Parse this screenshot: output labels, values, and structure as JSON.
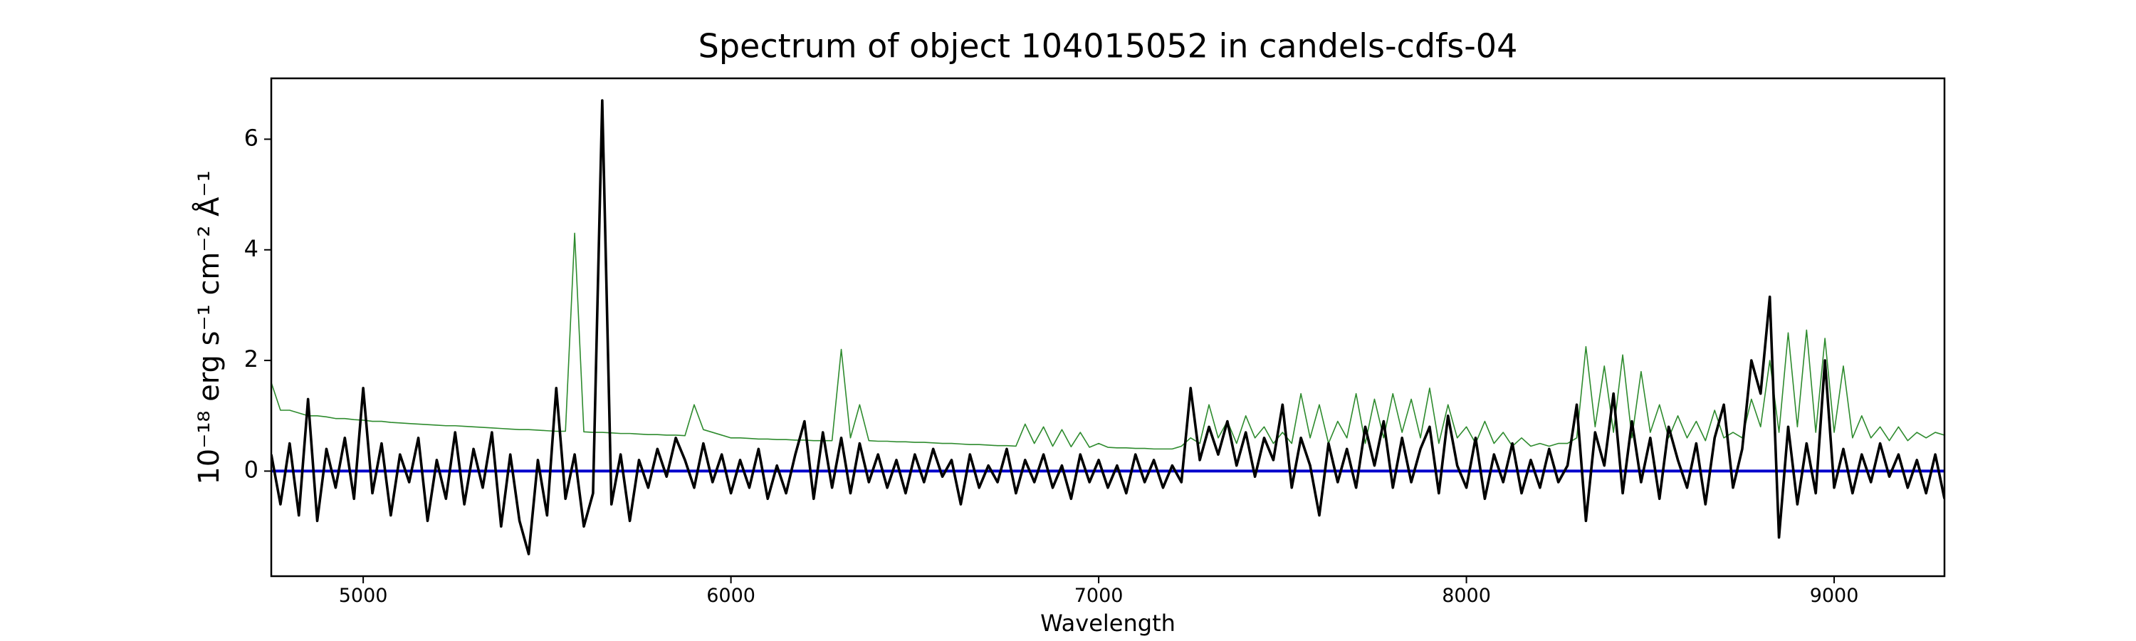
{
  "chart_data": {
    "type": "line",
    "title": "Spectrum of object 104015052 in candels-cdfs-04",
    "x_label": "Wavelength",
    "y_label": "10⁻¹⁸ erg s⁻¹ cm⁻² Å⁻¹",
    "xlim": [
      4750,
      9300
    ],
    "ylim": [
      -1.9,
      7.1
    ],
    "xticks": [
      5000,
      6000,
      7000,
      8000,
      9000
    ],
    "yticks": [
      0,
      2,
      4,
      6
    ],
    "x": [
      4750,
      4775,
      4800,
      4825,
      4850,
      4875,
      4900,
      4925,
      4950,
      4975,
      5000,
      5025,
      5050,
      5075,
      5100,
      5125,
      5150,
      5175,
      5200,
      5225,
      5250,
      5275,
      5300,
      5325,
      5350,
      5375,
      5400,
      5425,
      5450,
      5475,
      5500,
      5525,
      5550,
      5575,
      5600,
      5625,
      5650,
      5675,
      5700,
      5725,
      5750,
      5775,
      5800,
      5825,
      5850,
      5875,
      5900,
      5925,
      5950,
      5975,
      6000,
      6025,
      6050,
      6075,
      6100,
      6125,
      6150,
      6175,
      6200,
      6225,
      6250,
      6275,
      6300,
      6325,
      6350,
      6375,
      6400,
      6425,
      6450,
      6475,
      6500,
      6525,
      6550,
      6575,
      6600,
      6625,
      6650,
      6675,
      6700,
      6725,
      6750,
      6775,
      6800,
      6825,
      6850,
      6875,
      6900,
      6925,
      6950,
      6975,
      7000,
      7025,
      7050,
      7075,
      7100,
      7125,
      7150,
      7175,
      7200,
      7225,
      7250,
      7275,
      7300,
      7325,
      7350,
      7375,
      7400,
      7425,
      7450,
      7475,
      7500,
      7525,
      7550,
      7575,
      7600,
      7625,
      7650,
      7675,
      7700,
      7725,
      7750,
      7775,
      7800,
      7825,
      7850,
      7875,
      7900,
      7925,
      7950,
      7975,
      8000,
      8025,
      8050,
      8075,
      8100,
      8125,
      8150,
      8175,
      8200,
      8225,
      8250,
      8275,
      8300,
      8325,
      8350,
      8375,
      8400,
      8425,
      8450,
      8475,
      8500,
      8525,
      8550,
      8575,
      8600,
      8625,
      8650,
      8675,
      8700,
      8725,
      8750,
      8775,
      8800,
      8825,
      8850,
      8875,
      8900,
      8925,
      8950,
      8975,
      9000,
      9025,
      9050,
      9075,
      9100,
      9125,
      9150,
      9175,
      9200,
      9225,
      9250,
      9275,
      9300
    ],
    "series": [
      {
        "color": "#2e8b2e",
        "width": 1.6,
        "values": [
          1.6,
          1.1,
          1.1,
          1.05,
          1.0,
          1.0,
          0.98,
          0.95,
          0.95,
          0.93,
          0.92,
          0.9,
          0.9,
          0.88,
          0.87,
          0.86,
          0.85,
          0.84,
          0.83,
          0.82,
          0.82,
          0.81,
          0.8,
          0.79,
          0.78,
          0.77,
          0.76,
          0.75,
          0.75,
          0.74,
          0.73,
          0.72,
          0.72,
          4.3,
          0.71,
          0.7,
          0.7,
          0.69,
          0.68,
          0.68,
          0.67,
          0.66,
          0.66,
          0.65,
          0.65,
          0.64,
          1.2,
          0.75,
          0.7,
          0.65,
          0.6,
          0.6,
          0.59,
          0.58,
          0.58,
          0.57,
          0.57,
          0.56,
          0.56,
          0.55,
          0.55,
          0.55,
          2.2,
          0.6,
          1.2,
          0.55,
          0.54,
          0.54,
          0.53,
          0.53,
          0.52,
          0.52,
          0.51,
          0.5,
          0.5,
          0.49,
          0.48,
          0.48,
          0.47,
          0.46,
          0.46,
          0.45,
          0.85,
          0.5,
          0.8,
          0.45,
          0.75,
          0.44,
          0.7,
          0.43,
          0.5,
          0.43,
          0.42,
          0.42,
          0.41,
          0.41,
          0.4,
          0.4,
          0.4,
          0.45,
          0.6,
          0.5,
          1.2,
          0.6,
          0.9,
          0.5,
          1.0,
          0.6,
          0.8,
          0.5,
          0.7,
          0.5,
          1.4,
          0.6,
          1.2,
          0.5,
          0.9,
          0.6,
          1.4,
          0.5,
          1.3,
          0.6,
          1.4,
          0.7,
          1.3,
          0.6,
          1.5,
          0.5,
          1.2,
          0.6,
          0.8,
          0.5,
          0.9,
          0.5,
          0.7,
          0.45,
          0.6,
          0.45,
          0.5,
          0.45,
          0.5,
          0.5,
          0.6,
          2.25,
          0.8,
          1.9,
          0.7,
          2.1,
          0.6,
          1.8,
          0.7,
          1.2,
          0.6,
          1.0,
          0.6,
          0.9,
          0.55,
          1.1,
          0.6,
          0.7,
          0.6,
          1.3,
          0.8,
          2.0,
          0.7,
          2.5,
          0.8,
          2.55,
          0.7,
          2.4,
          0.7,
          1.9,
          0.6,
          1.0,
          0.6,
          0.8,
          0.55,
          0.8,
          0.55,
          0.7,
          0.6,
          0.7,
          0.65
        ]
      },
      {
        "color": "#0000cc",
        "width": 4,
        "x": [
          4750,
          9300
        ],
        "values": [
          0,
          0
        ]
      },
      {
        "color": "#000000",
        "width": 3.6,
        "values": [
          0.3,
          -0.6,
          0.5,
          -0.8,
          1.3,
          -0.9,
          0.4,
          -0.3,
          0.6,
          -0.5,
          1.5,
          -0.4,
          0.5,
          -0.8,
          0.3,
          -0.2,
          0.6,
          -0.9,
          0.2,
          -0.5,
          0.7,
          -0.6,
          0.4,
          -0.3,
          0.7,
          -1.0,
          0.3,
          -0.9,
          -1.5,
          0.2,
          -0.8,
          1.5,
          -0.5,
          0.3,
          -1.0,
          -0.4,
          6.7,
          -0.6,
          0.3,
          -0.9,
          0.2,
          -0.3,
          0.4,
          -0.1,
          0.6,
          0.2,
          -0.3,
          0.5,
          -0.2,
          0.3,
          -0.4,
          0.2,
          -0.3,
          0.4,
          -0.5,
          0.1,
          -0.4,
          0.3,
          0.9,
          -0.5,
          0.7,
          -0.3,
          0.6,
          -0.4,
          0.5,
          -0.2,
          0.3,
          -0.3,
          0.2,
          -0.4,
          0.3,
          -0.2,
          0.4,
          -0.1,
          0.2,
          -0.6,
          0.3,
          -0.3,
          0.1,
          -0.2,
          0.4,
          -0.4,
          0.2,
          -0.2,
          0.3,
          -0.3,
          0.1,
          -0.5,
          0.3,
          -0.2,
          0.2,
          -0.3,
          0.1,
          -0.4,
          0.3,
          -0.2,
          0.2,
          -0.3,
          0.1,
          -0.2,
          1.5,
          0.2,
          0.8,
          0.3,
          0.9,
          0.1,
          0.7,
          -0.1,
          0.6,
          0.2,
          1.2,
          -0.3,
          0.6,
          0.1,
          -0.8,
          0.5,
          -0.2,
          0.4,
          -0.3,
          0.8,
          0.1,
          0.9,
          -0.3,
          0.6,
          -0.2,
          0.4,
          0.8,
          -0.4,
          1.0,
          0.1,
          -0.3,
          0.6,
          -0.5,
          0.3,
          -0.2,
          0.5,
          -0.4,
          0.2,
          -0.3,
          0.4,
          -0.2,
          0.1,
          1.2,
          -0.9,
          0.7,
          0.1,
          1.4,
          -0.4,
          0.9,
          -0.2,
          0.6,
          -0.5,
          0.8,
          0.2,
          -0.3,
          0.5,
          -0.6,
          0.6,
          1.2,
          -0.3,
          0.4,
          2.0,
          1.4,
          3.15,
          -1.2,
          0.8,
          -0.6,
          0.5,
          -0.4,
          2.0,
          -0.3,
          0.4,
          -0.4,
          0.3,
          -0.2,
          0.5,
          -0.1,
          0.3,
          -0.3,
          0.2,
          -0.4,
          0.3,
          -0.5
        ]
      }
    ]
  }
}
